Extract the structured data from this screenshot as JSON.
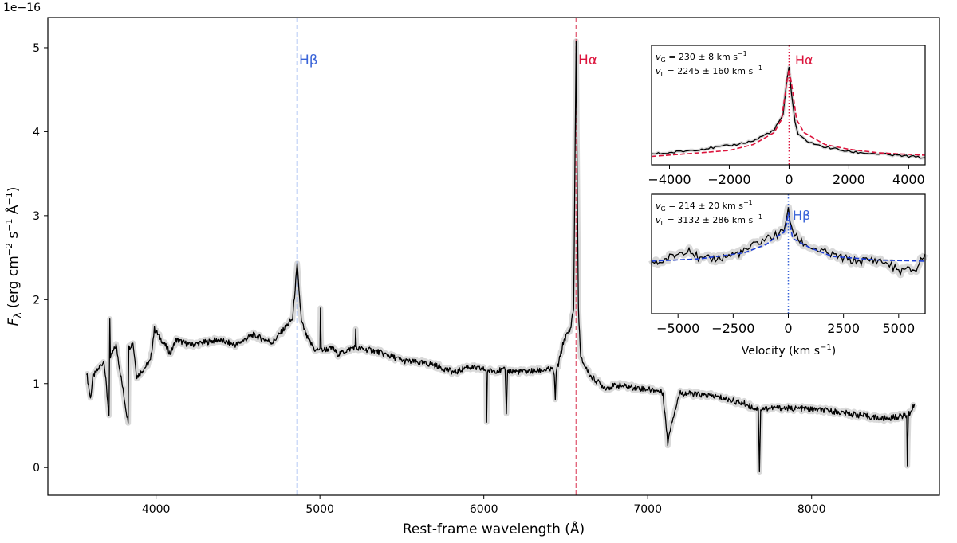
{
  "chart_data": [
    {
      "type": "line",
      "xlabel": "Rest-frame wavelength (Å)",
      "ylabel_parts": {
        "sym": "F",
        "sub": "λ",
        "a": " (erg cm",
        "e1": "−2",
        "b": " s",
        "e2": "−1",
        "c": " Å",
        "e3": "−1",
        "d": ")"
      },
      "y_offset_text": "1e−16",
      "xlim": [
        3340,
        8780
      ],
      "ylim": [
        -0.33,
        5.36
      ],
      "xticks": [
        4000,
        5000,
        6000,
        7000,
        8000
      ],
      "yticks": [
        0,
        1,
        2,
        3,
        4,
        5
      ],
      "grid": false,
      "line_colors": {
        "spectrum": "#000000",
        "error_band": "#d9d9d9",
        "hbeta": "#6f95ea",
        "halpha": "#e3677d"
      },
      "markers": [
        {
          "label": "Hβ",
          "x": 4861,
          "color": "#3a64d8"
        },
        {
          "label": "Hα",
          "x": 6563,
          "color": "#dc143c"
        }
      ],
      "series": [
        {
          "x": [
            3576,
            3600,
            3615,
            3683,
            3713,
            3718,
            3722,
            3756,
            3830,
            3834,
            3840,
            3859,
            3883,
            3966,
            3990,
            4088,
            4122,
            4209,
            4380,
            4487,
            4590,
            4711,
            4780,
            4833,
            4861,
            4887,
            4921,
            4974,
            5000,
            5003,
            5008,
            5076,
            5110,
            5215,
            5218,
            5222,
            5339,
            5510,
            5685,
            5827,
            5895,
            5997,
            6014,
            6017,
            6022,
            6130,
            6138,
            6145,
            6240,
            6421,
            6430,
            6436,
            6442,
            6455,
            6489,
            6528,
            6548,
            6563,
            6577,
            6591,
            6655,
            6742,
            6815,
            7049,
            7093,
            7122,
            7142,
            7195,
            7410,
            7590,
            7663,
            7675,
            7682,
            7689,
            7770,
            7950,
            8131,
            8438,
            8511,
            8565,
            8580,
            8584,
            8590,
            8627
          ],
          "y": [
            1.14,
            0.82,
            1.08,
            1.27,
            0.62,
            1.77,
            1.3,
            1.46,
            0.53,
            1.45,
            1.44,
            1.49,
            1.08,
            1.27,
            1.65,
            1.36,
            1.52,
            1.46,
            1.52,
            1.46,
            1.58,
            1.49,
            1.65,
            1.77,
            2.41,
            1.74,
            1.55,
            1.39,
            1.42,
            1.9,
            1.4,
            1.42,
            1.35,
            1.44,
            1.65,
            1.42,
            1.39,
            1.27,
            1.23,
            1.13,
            1.2,
            1.17,
            1.16,
            0.54,
            1.15,
            1.16,
            0.64,
            1.15,
            1.14,
            1.17,
            1.1,
            0.81,
            1.15,
            1.23,
            1.52,
            1.65,
            1.9,
            5.05,
            1.9,
            1.3,
            1.08,
            0.95,
            0.98,
            0.92,
            0.89,
            0.29,
            0.51,
            0.89,
            0.85,
            0.76,
            0.7,
            0.7,
            -0.05,
            0.7,
            0.71,
            0.7,
            0.67,
            0.58,
            0.6,
            0.62,
            0.62,
            0.02,
            0.62,
            0.75
          ]
        }
      ]
    },
    {
      "type": "line",
      "panel": "inset-top",
      "line_label": "Hα",
      "label_color": "#dc143c",
      "model_color": "#dc143c",
      "xlim": [
        -4600,
        4550
      ],
      "ylim": [
        0,
        1
      ],
      "xticks": [
        -4000,
        -2000,
        0,
        2000,
        4000
      ],
      "xtick_labels": [
        "−4000",
        "−2000",
        "0",
        "2000",
        "4000"
      ],
      "annotations": [
        {
          "v": "v",
          "sub": "G",
          "text": " = 230 ± 8 km s",
          "sup": "−1"
        },
        {
          "v": "v",
          "sub": "L",
          "text": " = 2245 ± 160 km s",
          "sup": "−1"
        }
      ],
      "data": {
        "x": [
          -4600,
          -4000,
          -3000,
          -2000,
          -1200,
          -500,
          -200,
          -80,
          0,
          80,
          200,
          300,
          600,
          1000,
          2000,
          3000,
          4000,
          4550
        ],
        "y": [
          0.09,
          0.1,
          0.13,
          0.16,
          0.2,
          0.29,
          0.42,
          0.7,
          0.82,
          0.6,
          0.36,
          0.25,
          0.2,
          0.16,
          0.11,
          0.09,
          0.07,
          0.06
        ]
      },
      "model": {
        "x": [
          -4600,
          -3000,
          -2000,
          -1200,
          -500,
          -250,
          -100,
          0,
          100,
          250,
          500,
          1200,
          2000,
          3000,
          4550
        ],
        "y": [
          0.07,
          0.1,
          0.12,
          0.17,
          0.27,
          0.38,
          0.65,
          0.8,
          0.65,
          0.38,
          0.27,
          0.17,
          0.13,
          0.1,
          0.08
        ]
      }
    },
    {
      "type": "line",
      "panel": "inset-bottom",
      "line_label": "Hβ",
      "label_color": "#3a64d8",
      "model_color": "#1f3fd6",
      "xlim": [
        -6200,
        6200
      ],
      "ylim": [
        0,
        1
      ],
      "xticks": [
        -5000,
        -2500,
        0,
        2500,
        5000
      ],
      "xtick_labels": [
        "−5000",
        "−2500",
        "0",
        "2500",
        "5000"
      ],
      "xlabel_parts": {
        "a": "Velocity (km s",
        "sup": "−1",
        "b": ")"
      },
      "annotations": [
        {
          "v": "v",
          "sub": "G",
          "text": " = 214 ± 20 km s",
          "sup": "−1"
        },
        {
          "v": "v",
          "sub": "L",
          "text": " = 3132 ± 286 km s",
          "sup": "−1"
        }
      ],
      "data": {
        "x": [
          -6200,
          -6000,
          -5000,
          -4500,
          -4000,
          -3000,
          -2000,
          -1500,
          -1000,
          -500,
          -200,
          -80,
          0,
          80,
          300,
          600,
          1000,
          1500,
          2000,
          3000,
          4000,
          4500,
          5000,
          5800,
          6000,
          6200
        ],
        "y": [
          0.44,
          0.42,
          0.5,
          0.55,
          0.45,
          0.47,
          0.52,
          0.58,
          0.63,
          0.66,
          0.69,
          0.8,
          0.89,
          0.78,
          0.65,
          0.6,
          0.56,
          0.52,
          0.49,
          0.44,
          0.45,
          0.42,
          0.36,
          0.37,
          0.45,
          0.5
        ]
      },
      "model": {
        "x": [
          -6200,
          -4000,
          -2000,
          -1000,
          -500,
          -200,
          -80,
          0,
          80,
          200,
          500,
          1000,
          2000,
          4000,
          6200
        ],
        "y": [
          0.44,
          0.46,
          0.51,
          0.58,
          0.65,
          0.68,
          0.75,
          0.85,
          0.75,
          0.63,
          0.6,
          0.55,
          0.48,
          0.45,
          0.44
        ]
      }
    }
  ]
}
